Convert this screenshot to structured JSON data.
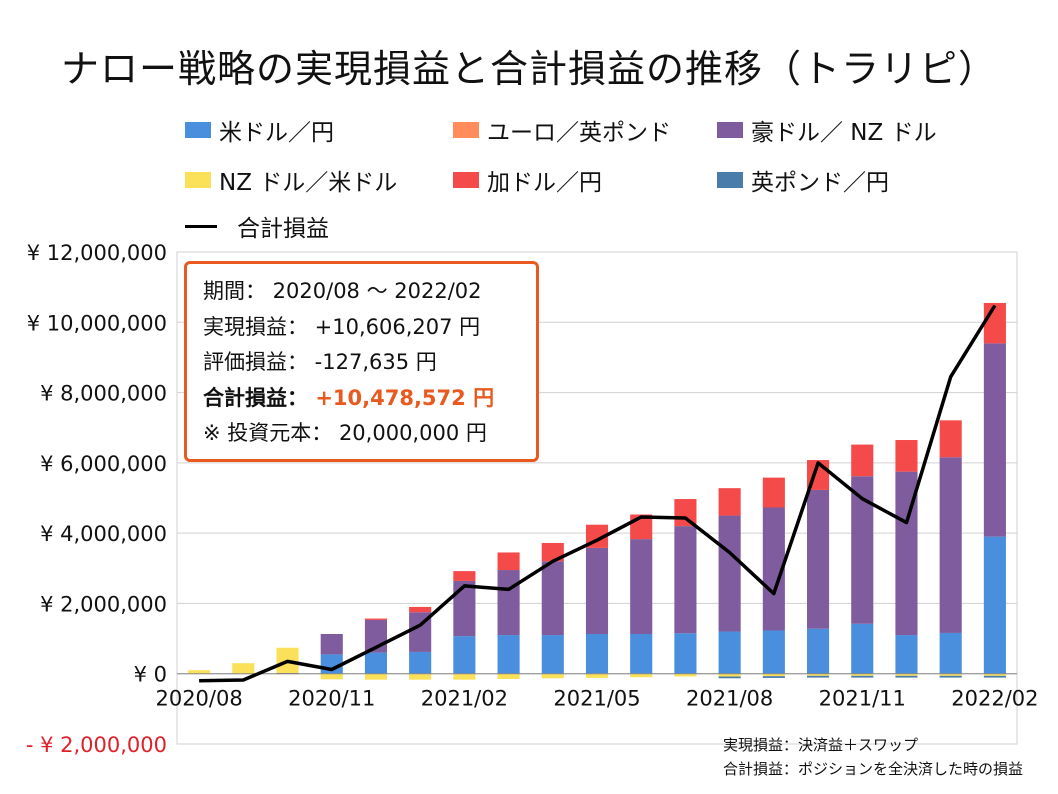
{
  "title": "ナロー戦略の実現損益と合計損益の推移（トラリピ）",
  "info_box": {
    "period": "期間： 2020/08 ～ 2022/02",
    "realized": "実現損益： +10,606,207 円",
    "unrealized": "評価損益： -127,635 円",
    "total_label": "合計損益：",
    "total_value": "+10,478,572 円",
    "principal": "※ 投資元本： 20,000,000 円"
  },
  "notes": {
    "line1": "実現損益：決済益＋スワップ",
    "line2": "合計損益：ポジションを全決済した時の損益"
  },
  "chart_data": {
    "type": "bar",
    "stacked": true,
    "title": "ナロー戦略の実現損益と合計損益の推移（トラリピ）",
    "x": [
      "2020/08",
      "2020/09",
      "2020/10",
      "2020/11",
      "2020/12",
      "2021/01",
      "2021/02",
      "2021/03",
      "2021/04",
      "2021/05",
      "2021/06",
      "2021/07",
      "2021/08",
      "2021/09",
      "2021/10",
      "2021/11",
      "2021/12",
      "2022/01",
      "2022/02"
    ],
    "x_tick_labels": [
      "2020/08",
      "2020/11",
      "2021/02",
      "2021/05",
      "2021/08",
      "2021/11",
      "2022/02"
    ],
    "y_tick_labels": [
      "¥ 12,000,000",
      "¥ 10,000,000",
      "¥ 8,000,000",
      "¥ 6,000,000",
      "¥ 4,000,000",
      "¥ 2,000,000",
      "¥ 0",
      "- ¥ 2,000,000"
    ],
    "y_tick_values": [
      12000000,
      10000000,
      8000000,
      6000000,
      4000000,
      2000000,
      0,
      -2000000
    ],
    "ylim": [
      -2000000,
      12000000
    ],
    "grid": true,
    "legend_position": "top",
    "series": [
      {
        "name": "米ドル／円",
        "color": "#4a8fdd",
        "values": [
          0,
          0,
          0,
          550000,
          600000,
          620000,
          1070000,
          1100000,
          1100000,
          1130000,
          1130000,
          1150000,
          1200000,
          1230000,
          1280000,
          1420000,
          1100000,
          1160000,
          3900000
        ]
      },
      {
        "name": "ユーロ／英ポンド",
        "color": "#ff8c5a",
        "values": [
          0,
          0,
          0,
          0,
          0,
          0,
          0,
          0,
          0,
          0,
          0,
          0,
          0,
          0,
          0,
          0,
          0,
          0,
          0
        ]
      },
      {
        "name": "豪ドル／ NZ ドル",
        "color": "#7e5c9e",
        "values": [
          0,
          0,
          20000,
          580000,
          930000,
          1130000,
          1570000,
          1850000,
          2100000,
          2450000,
          2700000,
          3050000,
          3300000,
          3500000,
          3950000,
          4200000,
          4650000,
          5000000,
          5500000
        ]
      },
      {
        "name": "NZ ドル／米ドル",
        "color": "#fbe15a",
        "values": [
          100000,
          300000,
          720000,
          -160000,
          -170000,
          -170000,
          -170000,
          -150000,
          -130000,
          -120000,
          -100000,
          -80000,
          -80000,
          -70000,
          -60000,
          -60000,
          -60000,
          -60000,
          -60000
        ]
      },
      {
        "name": "加ドル／円",
        "color": "#f54a4a",
        "values": [
          0,
          0,
          0,
          0,
          40000,
          150000,
          280000,
          500000,
          520000,
          660000,
          700000,
          770000,
          780000,
          850000,
          850000,
          900000,
          900000,
          1050000,
          1150000
        ]
      },
      {
        "name": "英ポンド／円",
        "color": "#4a7caa",
        "values": [
          0,
          0,
          0,
          0,
          0,
          0,
          0,
          0,
          0,
          0,
          0,
          0,
          -50000,
          -50000,
          -50000,
          -50000,
          -50000,
          -50000,
          -50000
        ]
      }
    ],
    "line": {
      "name": "合計損益",
      "color": "#000000",
      "values": [
        -200000,
        -180000,
        350000,
        120000,
        750000,
        1380000,
        2500000,
        2400000,
        3200000,
        3800000,
        4460000,
        4430000,
        3450000,
        2280000,
        6000000,
        4980000,
        4300000,
        8450000,
        10478572
      ]
    }
  }
}
